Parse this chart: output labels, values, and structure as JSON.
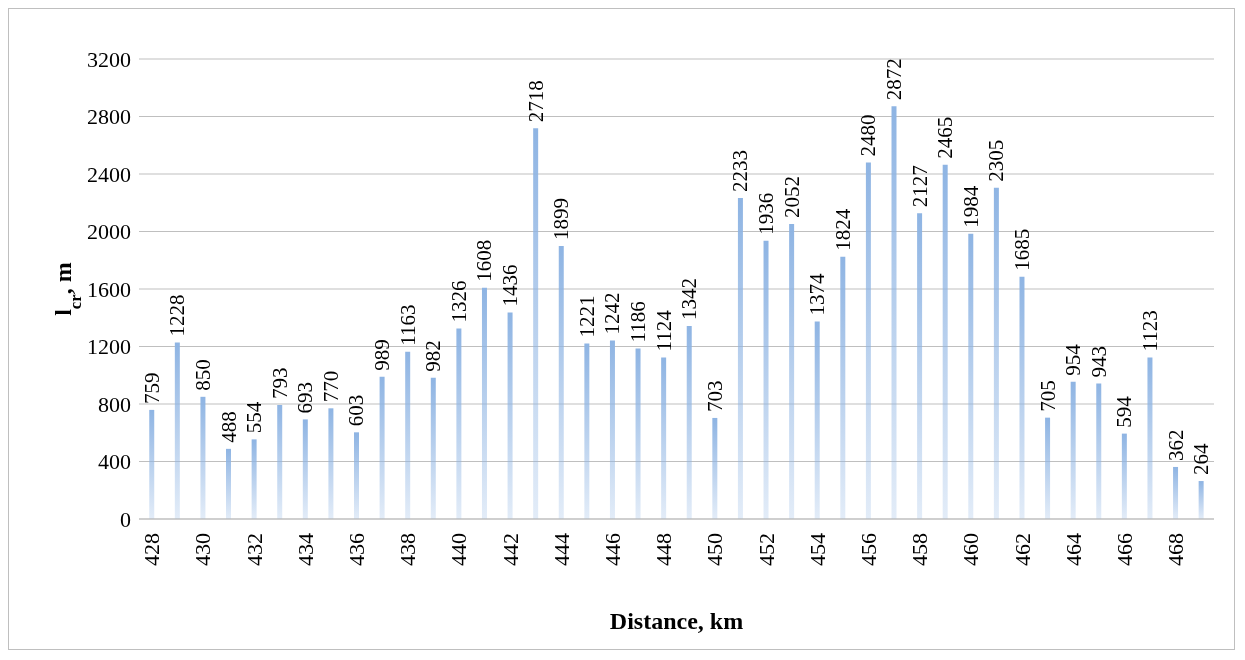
{
  "chart_data": {
    "type": "bar",
    "xlabel": "Distance, km",
    "ylabel": "l$_{cr}$, m",
    "categories": [
      "428",
      null,
      "430",
      null,
      "432",
      null,
      "434",
      null,
      "436",
      null,
      "438",
      null,
      "440",
      null,
      "442",
      null,
      "444",
      null,
      "446",
      null,
      "448",
      null,
      "450",
      null,
      "452",
      null,
      "454",
      null,
      "456",
      null,
      "458",
      null,
      "460",
      null,
      "462",
      null,
      "464",
      null,
      "466",
      null,
      "468",
      null
    ],
    "values": [
      759,
      1228,
      850,
      488,
      554,
      793,
      693,
      770,
      603,
      989,
      1163,
      982,
      1326,
      1608,
      1436,
      2718,
      1899,
      1221,
      1242,
      1186,
      1124,
      1342,
      703,
      2233,
      1936,
      2052,
      1374,
      1824,
      2480,
      2872,
      2127,
      2465,
      1984,
      2305,
      1685,
      705,
      954,
      943,
      594,
      1123,
      362,
      264
    ],
    "color": "#8eb4e3",
    "ylim": [
      0,
      3200
    ],
    "yticks": [
      0,
      400,
      800,
      1200,
      1600,
      2000,
      2400,
      2800,
      3200
    ],
    "grid": "y",
    "data_labels": true
  }
}
